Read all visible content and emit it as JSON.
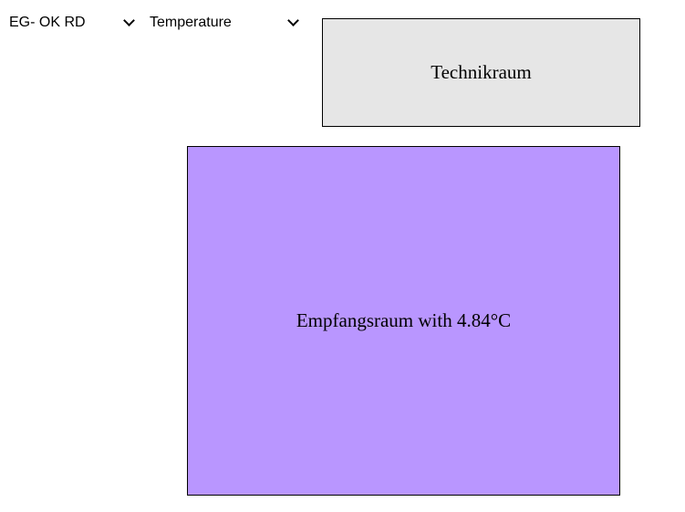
{
  "controls": {
    "floor_select": {
      "selected": "EG- OK RD",
      "icon": "chevron-down-icon"
    },
    "metric_select": {
      "selected": "Temperature",
      "icon": "chevron-down-icon"
    }
  },
  "rooms": [
    {
      "label": "Technikraum",
      "fill_color": "#e6e6e6",
      "border_color": "#000000"
    },
    {
      "label": "Empfangsraum with 4.84°C",
      "fill_color": "#b996ff",
      "border_color": "#000000"
    }
  ]
}
